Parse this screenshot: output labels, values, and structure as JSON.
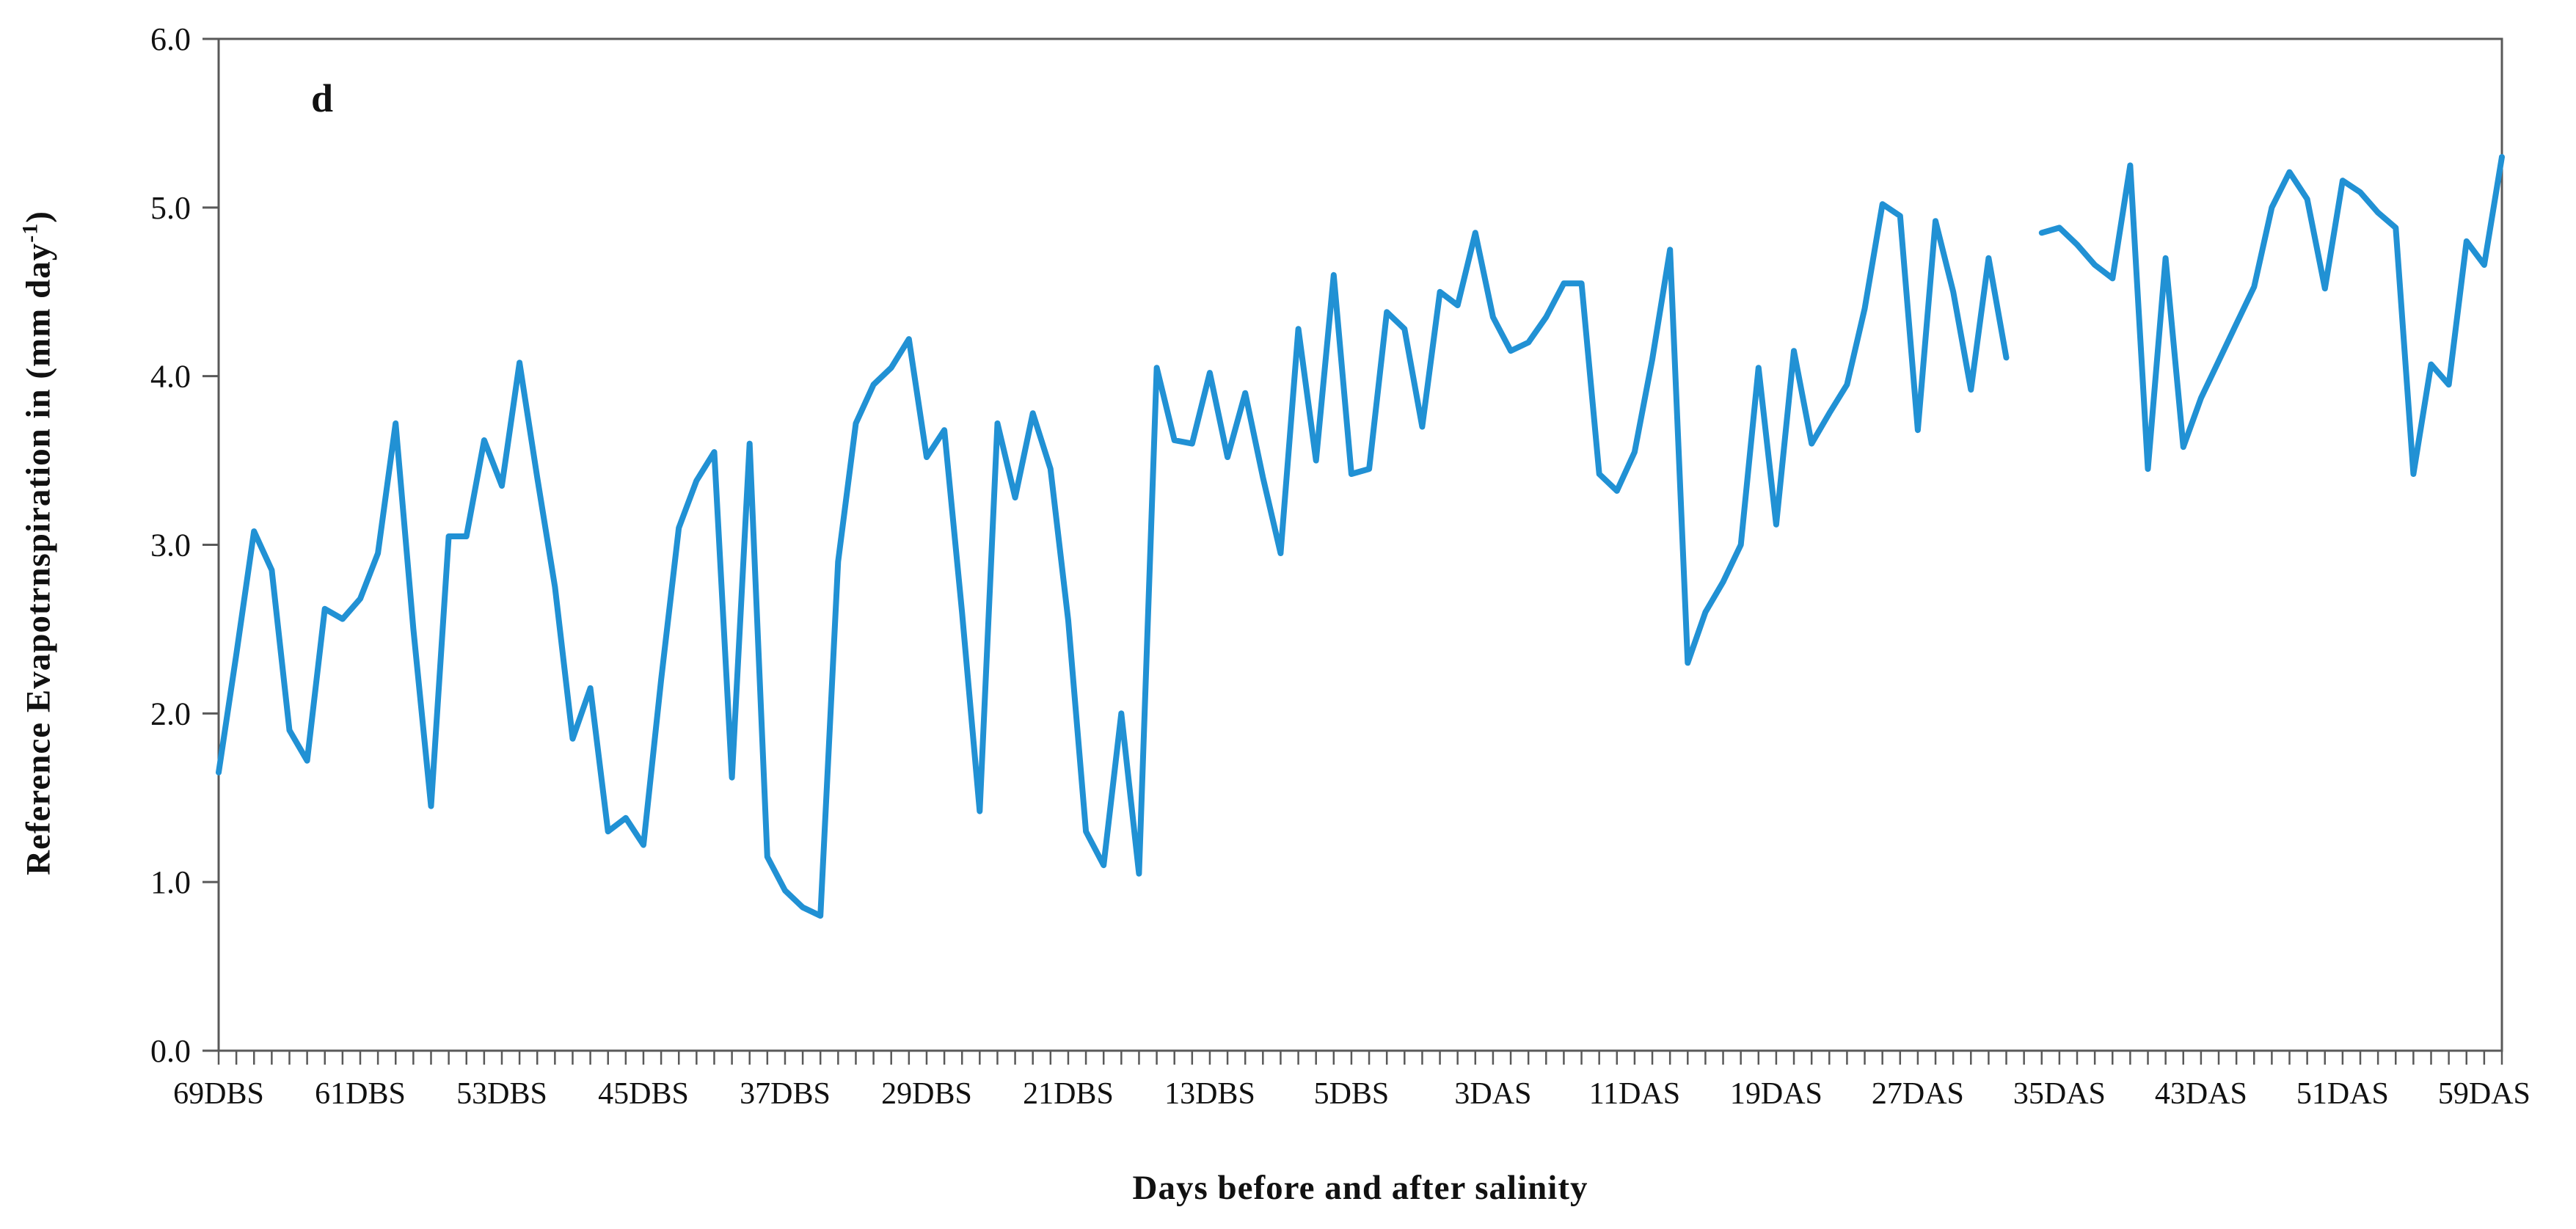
{
  "panel_label": "d",
  "colors": {
    "line": "#2191D4",
    "axis": "#595959",
    "text": "#111111",
    "background": "#ffffff"
  },
  "chart_data": {
    "type": "line",
    "title": "",
    "panel_label": "d",
    "xlabel": "Days before and after salinity",
    "ylabel_text": "Reference Evapotrnspiration in (mm day",
    "ylabel_sup": "-1",
    "ylabel_suffix": ")",
    "ylim": [
      0.0,
      6.0
    ],
    "ytick_labels": [
      "0.0",
      "1.0",
      "2.0",
      "3.0",
      "4.0",
      "5.0",
      "6.0"
    ],
    "grid": false,
    "legend": "none",
    "x_label_every": 8,
    "x_tick_labels": [
      "69DBS",
      "61DBS",
      "53DBS",
      "45DBS",
      "37DBS",
      "29DBS",
      "21DBS",
      "13DBS",
      "5DBS",
      "3DAS",
      "11DAS",
      "19DAS",
      "27DAS",
      "35DAS",
      "43DAS",
      "51DAS",
      "59DAS"
    ],
    "series": [
      {
        "name": "Reference evapotranspiration",
        "values": [
          1.65,
          2.35,
          3.08,
          2.85,
          1.9,
          1.72,
          2.62,
          2.56,
          2.68,
          2.95,
          3.72,
          2.5,
          1.45,
          3.05,
          3.05,
          3.62,
          3.35,
          4.08,
          3.4,
          2.75,
          1.85,
          2.15,
          1.3,
          1.38,
          1.22,
          2.2,
          3.1,
          3.38,
          3.55,
          1.62,
          3.6,
          1.15,
          0.95,
          0.85,
          0.8,
          2.9,
          3.72,
          3.95,
          4.05,
          4.22,
          3.52,
          3.68,
          2.6,
          1.42,
          3.72,
          3.28,
          3.78,
          3.45,
          2.55,
          1.3,
          1.1,
          2.0,
          1.05,
          4.05,
          3.62,
          3.6,
          4.02,
          3.52,
          3.9,
          3.4,
          2.95,
          4.28,
          3.5,
          4.6,
          3.42,
          3.45,
          4.38,
          4.28,
          3.7,
          4.5,
          4.42,
          4.85,
          4.35,
          4.15,
          4.2,
          4.35,
          4.55,
          4.55,
          3.42,
          3.32,
          3.55,
          4.1,
          4.75,
          2.3,
          2.6,
          2.78,
          3.0,
          4.05,
          3.12,
          4.15,
          3.6,
          3.78,
          3.95,
          4.4,
          5.02,
          4.95,
          3.68,
          4.92,
          4.5,
          3.92,
          4.7,
          4.11,
          null,
          4.85,
          4.88,
          4.78,
          4.66,
          4.58,
          5.25,
          3.45,
          4.7,
          3.58,
          3.87,
          4.09,
          4.31,
          4.53,
          5.0,
          5.21,
          5.05,
          4.52,
          5.16,
          5.09,
          4.97,
          4.88,
          3.42,
          4.07,
          3.95,
          4.8,
          4.66,
          5.3
        ]
      }
    ]
  }
}
